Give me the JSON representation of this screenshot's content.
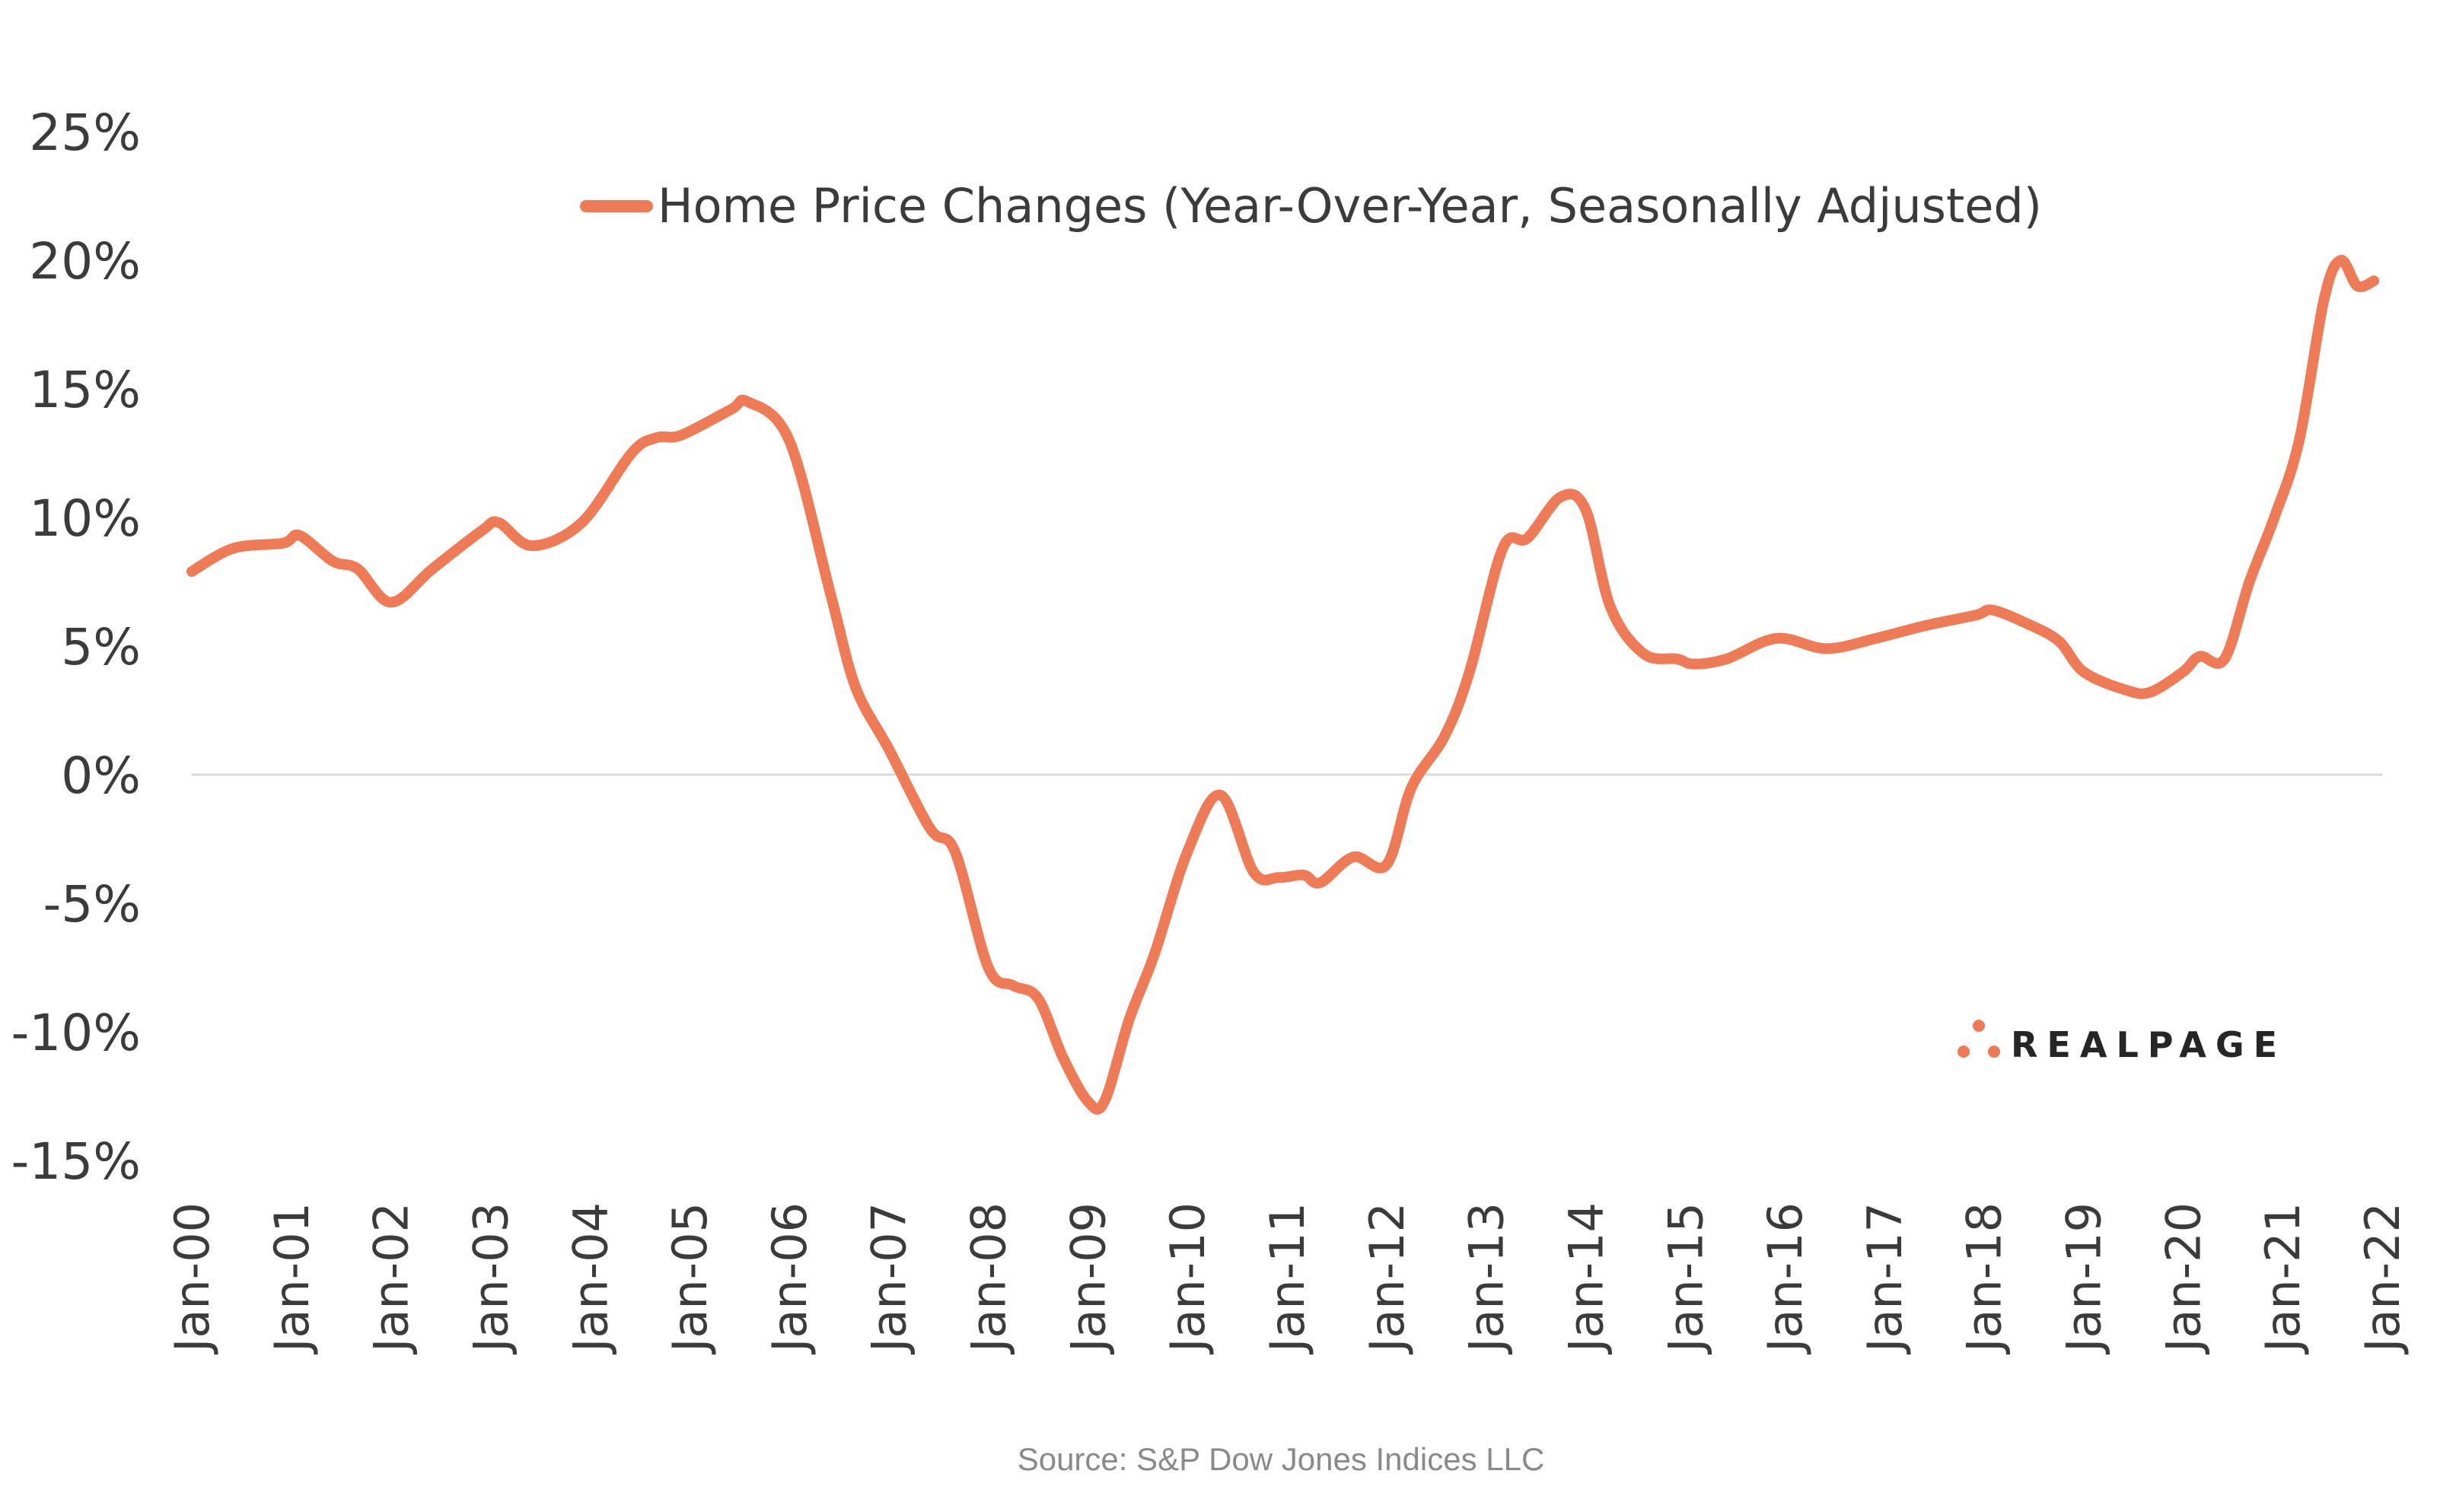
{
  "chart_data": {
    "type": "line",
    "title": "",
    "xlabel": "",
    "ylabel": "",
    "ylim": [
      -15,
      25
    ],
    "yticks": [
      "25%",
      "20%",
      "15%",
      "10%",
      "5%",
      "0%",
      "-5%",
      "-10%",
      "-15%"
    ],
    "ytick_values": [
      25,
      20,
      15,
      10,
      5,
      0,
      -5,
      -10,
      -15
    ],
    "xticks": [
      "Jan-00",
      "Jan-01",
      "Jan-02",
      "Jan-03",
      "Jan-04",
      "Jan-05",
      "Jan-06",
      "Jan-07",
      "Jan-08",
      "Jan-09",
      "Jan-10",
      "Jan-11",
      "Jan-12",
      "Jan-13",
      "Jan-14",
      "Jan-15",
      "Jan-16",
      "Jan-17",
      "Jan-18",
      "Jan-19",
      "Jan-20",
      "Jan-21",
      "Jan-22"
    ],
    "grid": "zero line only",
    "legend_position": "top-center",
    "series": [
      {
        "name": "Home Price Changes (Year-Over-Year, Seasonally Adjusted)",
        "color": "#EF7A56",
        "x": [
          "2000-01",
          "2000-06",
          "2000-12",
          "2001-02",
          "2001-06",
          "2001-09",
          "2002-01",
          "2002-06",
          "2002-12",
          "2003-02",
          "2003-06",
          "2003-12",
          "2004-06",
          "2004-09",
          "2004-12",
          "2005-06",
          "2005-08",
          "2006-01",
          "2006-06",
          "2006-09",
          "2007-01",
          "2007-06",
          "2007-09",
          "2008-01",
          "2008-04",
          "2008-07",
          "2008-10",
          "2009-01",
          "2009-03",
          "2009-06",
          "2009-09",
          "2010-01",
          "2010-05",
          "2010-09",
          "2010-12",
          "2011-03",
          "2011-05",
          "2011-09",
          "2012-01",
          "2012-04",
          "2012-08",
          "2012-11",
          "2013-03",
          "2013-06",
          "2013-10",
          "2014-01",
          "2014-04",
          "2014-08",
          "2014-12",
          "2015-02",
          "2015-06",
          "2015-12",
          "2016-06",
          "2016-12",
          "2017-06",
          "2017-12",
          "2018-02",
          "2018-06",
          "2018-10",
          "2019-01",
          "2019-06",
          "2019-09",
          "2020-01",
          "2020-03",
          "2020-06",
          "2020-09",
          "2020-12",
          "2021-03",
          "2021-06",
          "2021-08",
          "2021-10",
          "2021-12"
        ],
        "values": [
          7.9,
          8.8,
          9.0,
          9.3,
          8.3,
          8.0,
          6.7,
          8.0,
          9.5,
          9.8,
          8.9,
          9.8,
          12.5,
          13.1,
          13.2,
          14.2,
          14.5,
          13.0,
          7.0,
          3.4,
          1.0,
          -2.1,
          -3.0,
          -7.5,
          -8.2,
          -8.7,
          -11.0,
          -12.7,
          -12.7,
          -9.5,
          -7.0,
          -3.0,
          -0.8,
          -3.8,
          -4.0,
          -3.9,
          -4.2,
          -3.2,
          -3.5,
          -0.5,
          1.5,
          4.0,
          8.8,
          9.2,
          10.8,
          10.3,
          6.5,
          4.7,
          4.5,
          4.3,
          4.5,
          5.3,
          4.9,
          5.3,
          5.8,
          6.2,
          6.4,
          5.9,
          5.2,
          4.0,
          3.3,
          3.2,
          4.0,
          4.6,
          4.5,
          7.5,
          10.0,
          13.0,
          18.5,
          20.0,
          19.0,
          19.2
        ]
      }
    ]
  },
  "source": "Source: S&P Dow Jones Indices LLC",
  "logo": {
    "text": "REALPAGE",
    "color": "#EF7A56"
  }
}
